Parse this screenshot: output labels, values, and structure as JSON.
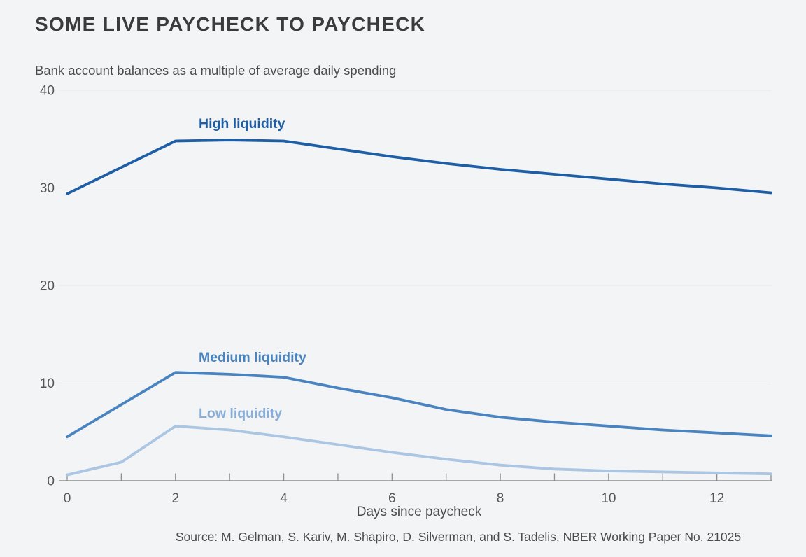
{
  "figure": {
    "title": "SOME LIVE PAYCHECK TO PAYCHECK",
    "subtitle": "Bank account balances as a multiple of average daily spending",
    "source": "Source: M. Gelman, S. Kariv, M. Shapiro, D. Silverman, and S. Tadelis, NBER Working Paper No. 21025"
  },
  "chart_data": {
    "type": "line",
    "title": "SOME LIVE PAYCHECK TO PAYCHECK",
    "subtitle": "Bank account balances as a multiple of average daily spending",
    "xlabel": "Days since paycheck",
    "ylabel": "",
    "x": [
      0,
      1,
      2,
      3,
      4,
      5,
      6,
      7,
      8,
      9,
      10,
      11,
      12,
      13
    ],
    "series": [
      {
        "name": "High liquidity",
        "color": "#1e5ea6",
        "values": [
          29.4,
          32.1,
          34.8,
          34.9,
          34.8,
          34.0,
          33.2,
          32.5,
          31.9,
          31.4,
          30.9,
          30.4,
          30.0,
          29.5
        ]
      },
      {
        "name": "Medium liquidity",
        "color": "#4a84c0",
        "values": [
          4.5,
          7.8,
          11.1,
          10.9,
          10.6,
          9.5,
          8.5,
          7.3,
          6.5,
          6.0,
          5.6,
          5.2,
          4.9,
          4.6
        ]
      },
      {
        "name": "Low liquidity",
        "color": "#abc6e3",
        "label_color": "#88aed8",
        "values": [
          0.6,
          1.9,
          5.6,
          5.2,
          4.5,
          3.7,
          2.9,
          2.2,
          1.6,
          1.2,
          1.0,
          0.9,
          0.8,
          0.7
        ]
      }
    ],
    "xlim": [
      0,
      13
    ],
    "ylim": [
      0,
      40
    ],
    "y_ticks": [
      0,
      10,
      20,
      30,
      40
    ],
    "x_tick_labels": [
      0,
      2,
      4,
      6,
      8,
      10,
      12
    ],
    "grid": "horizontal",
    "legend_position": "inline-labels",
    "source": "Source: M. Gelman, S. Kariv, M. Shapiro, D. Silverman, and S. Tadelis, NBER Working Paper No. 21025"
  },
  "colors": {
    "background": "#f3f4f6",
    "gridline": "#e5e6e9",
    "axis": "#8e8e91",
    "tick_label": "#56565a",
    "title_text": "#3b3b3c",
    "body_text": "#4b4b4e"
  }
}
